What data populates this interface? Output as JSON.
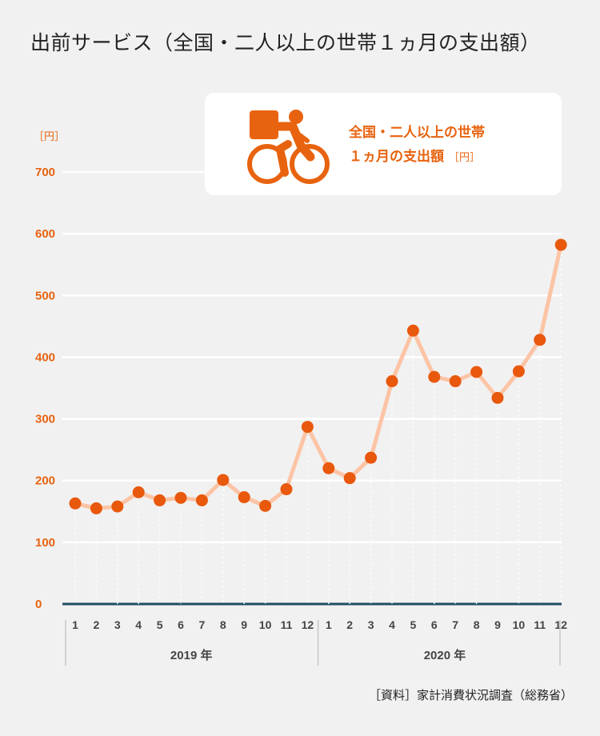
{
  "title": "出前サービス（全国・二人以上の世帯１ヵ月の支出額）",
  "legend": {
    "icon": "delivery-bicycle-icon",
    "line1": "全国・二人以上の世帯",
    "line2": "１ヵ月の支出額",
    "unit": "［円］"
  },
  "source": "［資料］家計消費状況調査（総務省）",
  "chart_data": {
    "type": "line",
    "yunit": "［円］",
    "ylim": [
      0,
      700
    ],
    "yticks": [
      0,
      100,
      200,
      300,
      400,
      500,
      600,
      700
    ],
    "grid": true,
    "categories": [
      "1",
      "2",
      "3",
      "4",
      "5",
      "6",
      "7",
      "8",
      "9",
      "10",
      "11",
      "12",
      "1",
      "2",
      "3",
      "4",
      "5",
      "6",
      "7",
      "8",
      "9",
      "10",
      "11",
      "12"
    ],
    "year_groups": [
      {
        "label": "2019 年",
        "start": 0,
        "end": 11
      },
      {
        "label": "2020 年",
        "start": 12,
        "end": 23
      }
    ],
    "series": [
      {
        "values": [
          163,
          155,
          158,
          181,
          168,
          172,
          168,
          201,
          173,
          159,
          186,
          287,
          220,
          204,
          237,
          361,
          443,
          368,
          361,
          376,
          334,
          377,
          428,
          582
        ]
      }
    ],
    "line_color": "#fcc4a5",
    "marker_color": "#e8580d",
    "accent_color": "#e8630f",
    "baseline_color": "#1d4e63"
  }
}
